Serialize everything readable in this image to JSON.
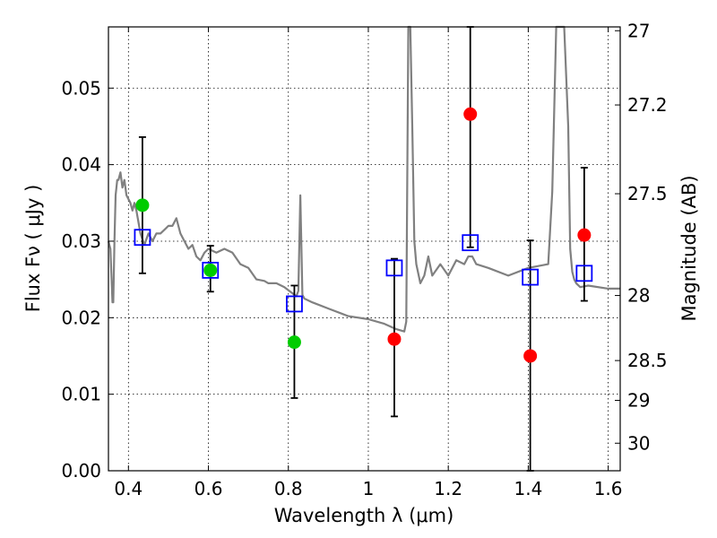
{
  "chart_data": {
    "type": "scatter",
    "xlabel": "Wavelength  λ (μm)",
    "ylabel": "Flux  Fν  ( μJy )",
    "ylabel_right": "Magnitude (AB)",
    "xlim": [
      0.35,
      1.63
    ],
    "ylim": [
      0.0,
      0.058
    ],
    "grid": true,
    "x_ticks": [
      0.4,
      0.6,
      0.8,
      1.0,
      1.2,
      1.4,
      1.6
    ],
    "x_tick_labels": [
      "0.4",
      "0.6",
      "0.8",
      "1",
      "1.2",
      "1.4",
      "1.6"
    ],
    "y_ticks": [
      0.0,
      0.01,
      0.02,
      0.03,
      0.04,
      0.05
    ],
    "y_tick_labels": [
      "0.00",
      "0.01",
      "0.02",
      "0.03",
      "0.04",
      "0.05"
    ],
    "right_ticks": [
      {
        "label": "27",
        "flux": 0.0575
      },
      {
        "label": "27.2",
        "flux": 0.0478
      },
      {
        "label": "27.5",
        "flux": 0.0362
      },
      {
        "label": "28",
        "flux": 0.0229
      },
      {
        "label": "28.5",
        "flux": 0.0144
      },
      {
        "label": "29",
        "flux": 0.0092
      },
      {
        "label": "30",
        "flux": 0.0036
      }
    ],
    "colors": {
      "model": "#808080",
      "green": "#00cc00",
      "red": "#ff0000",
      "square": "#0000ff",
      "errbar": "#000000"
    },
    "series": [
      {
        "kind": "line",
        "color": "#808080",
        "x": [
          0.35,
          0.355,
          0.36,
          0.362,
          0.365,
          0.368,
          0.372,
          0.375,
          0.38,
          0.385,
          0.39,
          0.395,
          0.4,
          0.405,
          0.41,
          0.415,
          0.42,
          0.43,
          0.44,
          0.45,
          0.46,
          0.47,
          0.48,
          0.49,
          0.5,
          0.51,
          0.52,
          0.53,
          0.54,
          0.55,
          0.56,
          0.57,
          0.58,
          0.59,
          0.6,
          0.62,
          0.64,
          0.66,
          0.68,
          0.7,
          0.72,
          0.74,
          0.75,
          0.77,
          0.79,
          0.8,
          0.81,
          0.815,
          0.82,
          0.825,
          0.83,
          0.835,
          0.84,
          0.86,
          0.9,
          0.95,
          1.0,
          1.04,
          1.07,
          1.09,
          1.095,
          1.1,
          1.105,
          1.11,
          1.115,
          1.12,
          1.13,
          1.14,
          1.15,
          1.16,
          1.18,
          1.2,
          1.22,
          1.24,
          1.25,
          1.26,
          1.27,
          1.3,
          1.35,
          1.4,
          1.45,
          1.46,
          1.47,
          1.48,
          1.49,
          1.5,
          1.505,
          1.51,
          1.515,
          1.52,
          1.53,
          1.55,
          1.6,
          1.63
        ],
        "y": [
          0.03,
          0.029,
          0.022,
          0.022,
          0.03,
          0.036,
          0.038,
          0.038,
          0.039,
          0.037,
          0.038,
          0.036,
          0.0355,
          0.035,
          0.034,
          0.035,
          0.034,
          0.031,
          0.0295,
          0.031,
          0.03,
          0.031,
          0.031,
          0.0315,
          0.032,
          0.032,
          0.033,
          0.031,
          0.03,
          0.029,
          0.0295,
          0.028,
          0.0275,
          0.0285,
          0.029,
          0.0285,
          0.029,
          0.0285,
          0.027,
          0.0265,
          0.025,
          0.0248,
          0.0245,
          0.0245,
          0.024,
          0.0236,
          0.0232,
          0.023,
          0.0228,
          0.0235,
          0.036,
          0.023,
          0.0225,
          0.022,
          0.0212,
          0.0202,
          0.0198,
          0.0192,
          0.0185,
          0.0182,
          0.0195,
          0.058,
          0.058,
          0.045,
          0.03,
          0.027,
          0.0245,
          0.0255,
          0.028,
          0.0255,
          0.027,
          0.0255,
          0.0275,
          0.027,
          0.028,
          0.028,
          0.027,
          0.0265,
          0.0255,
          0.0265,
          0.027,
          0.0365,
          0.058,
          0.058,
          0.058,
          0.045,
          0.029,
          0.026,
          0.025,
          0.0245,
          0.024,
          0.0242,
          0.0238,
          0.0238
        ]
      },
      {
        "kind": "points",
        "color": "#00cc00",
        "x": [
          0.435,
          0.605,
          0.815
        ],
        "y": [
          0.0347,
          0.0262,
          0.0168
        ]
      },
      {
        "kind": "points",
        "color": "#ff0000",
        "x": [
          1.065,
          1.255,
          1.405,
          1.54
        ],
        "y": [
          0.0172,
          0.0466,
          0.015,
          0.0308
        ]
      },
      {
        "kind": "squares",
        "color": "#0000ff",
        "x": [
          0.435,
          0.605,
          0.815,
          1.065,
          1.255,
          1.405,
          1.54
        ],
        "y": [
          0.0305,
          0.0262,
          0.0218,
          0.0265,
          0.0298,
          0.0253,
          0.0258
        ]
      }
    ],
    "error_bars": [
      {
        "x": 0.435,
        "low": 0.0258,
        "high": 0.0436
      },
      {
        "x": 0.605,
        "low": 0.0234,
        "high": 0.0294
      },
      {
        "x": 0.815,
        "low": 0.0095,
        "high": 0.0242
      },
      {
        "x": 1.065,
        "low": 0.0071,
        "high": 0.0277
      },
      {
        "x": 1.255,
        "low": 0.0292,
        "high": 0.058
      },
      {
        "x": 1.405,
        "low": 0.0,
        "high": 0.0301
      },
      {
        "x": 1.54,
        "low": 0.0222,
        "high": 0.0396
      }
    ]
  }
}
